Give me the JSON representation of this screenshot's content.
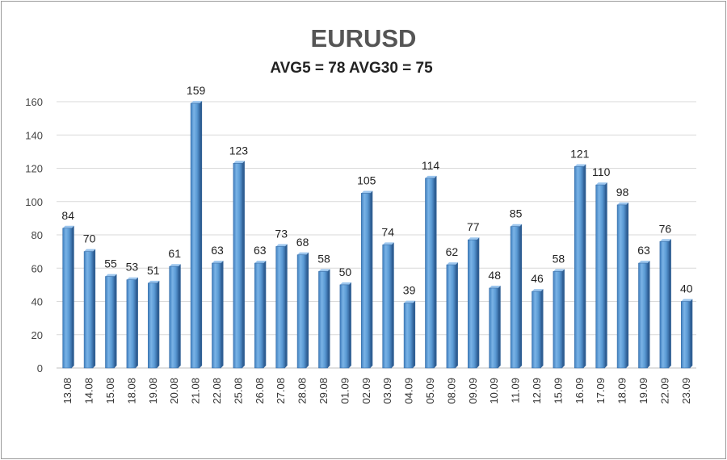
{
  "chart_data": {
    "type": "bar",
    "title": "EURUSD",
    "subtitle": "AVG5 = 78 AVG30 = 75",
    "xlabel": "",
    "ylabel": "",
    "ylim": [
      0,
      160
    ],
    "yticks": [
      0,
      20,
      40,
      60,
      80,
      100,
      120,
      140,
      160
    ],
    "grid": true,
    "legend": "none",
    "bar_color": "#5b9bd5",
    "categories": [
      "13.08",
      "14.08",
      "15.08",
      "18.08",
      "19.08",
      "20.08",
      "21.08",
      "22.08",
      "25.08",
      "26.08",
      "27.08",
      "28.08",
      "29.08",
      "01.09",
      "02.09",
      "03.09",
      "04.09",
      "05.09",
      "08.09",
      "09.09",
      "10.09",
      "11.09",
      "12.09",
      "15.09",
      "16.09",
      "17.09",
      "18.09",
      "19.09",
      "22.09",
      "23.09"
    ],
    "values": [
      84,
      70,
      55,
      53,
      51,
      61,
      159,
      63,
      123,
      63,
      73,
      68,
      58,
      50,
      105,
      74,
      39,
      114,
      62,
      77,
      48,
      85,
      46,
      58,
      121,
      110,
      98,
      63,
      76,
      40
    ]
  }
}
